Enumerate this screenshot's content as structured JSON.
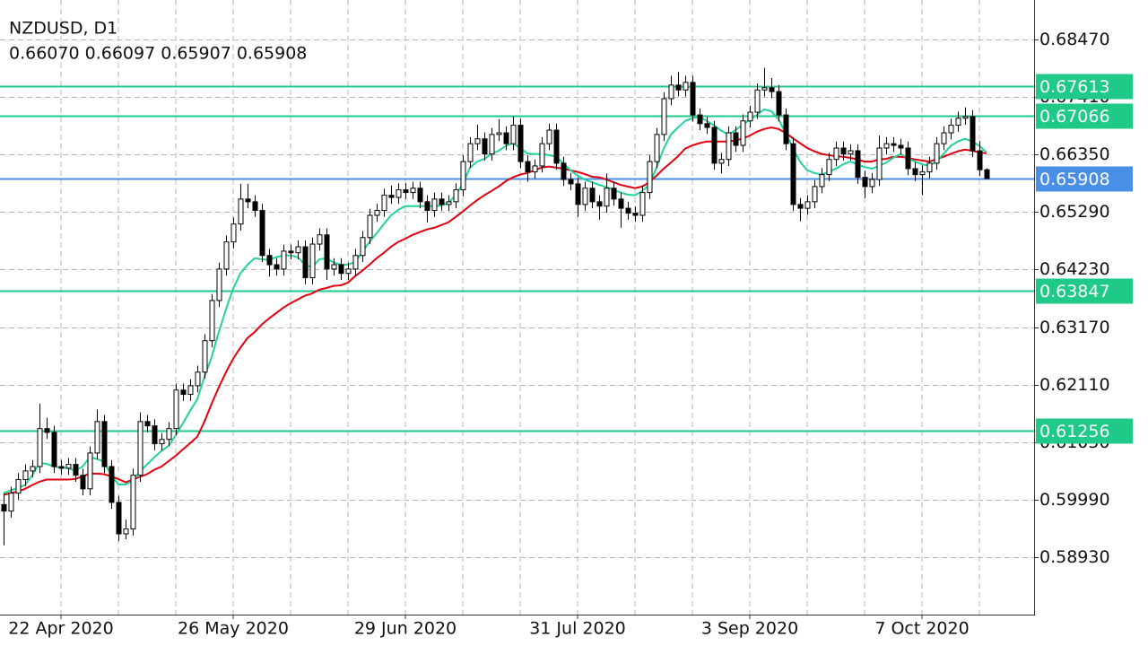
{
  "chart_data": {
    "type": "candlestick",
    "title": "NZDUSD, D1",
    "ohlc_readout": "0.66070 0.66097 0.65907 0.65908",
    "ylim": [
      0.57872,
      0.69198
    ],
    "yticks": [
      {
        "value": 0.5893,
        "label": "0.58930"
      },
      {
        "value": 0.5999,
        "label": "0.59990"
      },
      {
        "value": 0.6105,
        "label": "0.61050"
      },
      {
        "value": 0.6211,
        "label": "0.62110"
      },
      {
        "value": 0.6317,
        "label": "0.63170"
      },
      {
        "value": 0.6423,
        "label": "0.64230"
      },
      {
        "value": 0.6529,
        "label": "0.65290"
      },
      {
        "value": 0.6635,
        "label": "0.66350"
      },
      {
        "value": 0.6741,
        "label": "0.67410"
      },
      {
        "value": 0.6847,
        "label": "0.68470"
      }
    ],
    "grid": true,
    "categories": [
      null,
      null,
      null,
      null,
      null,
      null,
      null,
      null,
      "22 Apr 2020",
      null,
      null,
      null,
      null,
      null,
      null,
      null,
      null,
      null,
      null,
      null,
      null,
      null,
      null,
      null,
      null,
      null,
      null,
      null,
      null,
      null,
      null,
      null,
      "26 May 2020",
      null,
      null,
      null,
      null,
      null,
      null,
      null,
      null,
      null,
      null,
      null,
      null,
      null,
      null,
      null,
      null,
      null,
      null,
      null,
      null,
      null,
      null,
      null,
      "29 Jun 2020",
      null,
      null,
      null,
      null,
      null,
      null,
      null,
      null,
      null,
      null,
      null,
      null,
      null,
      null,
      null,
      null,
      null,
      null,
      null,
      null,
      null,
      null,
      null,
      "31 Jul 2020",
      null,
      null,
      null,
      null,
      null,
      null,
      null,
      null,
      null,
      null,
      null,
      null,
      null,
      null,
      null,
      null,
      null,
      null,
      null,
      null,
      null,
      null,
      null,
      "3 Sep 2020",
      null,
      null,
      null,
      null,
      null,
      null,
      null,
      null,
      null,
      null,
      null,
      null,
      null,
      null,
      null,
      null,
      null,
      null,
      null,
      null,
      null,
      null,
      null,
      "7 Oct 2020",
      null,
      null,
      null,
      null,
      null,
      null,
      null,
      null,
      null
    ],
    "ohlc": [
      [
        0.599,
        0.601,
        0.5915,
        0.5978
      ],
      [
        0.5978,
        0.6023,
        0.5966,
        0.6011
      ],
      [
        0.6011,
        0.6048,
        0.5999,
        0.6036
      ],
      [
        0.6036,
        0.6064,
        0.6024,
        0.6052
      ],
      [
        0.6052,
        0.6072,
        0.604,
        0.606
      ],
      [
        0.606,
        0.6176,
        0.6048,
        0.613
      ],
      [
        0.613,
        0.615,
        0.6111,
        0.6123
      ],
      [
        0.6123,
        0.6135,
        0.6048,
        0.606
      ],
      [
        0.606,
        0.6072,
        0.6045,
        0.6057
      ],
      [
        0.6057,
        0.6076,
        0.6045,
        0.6064
      ],
      [
        0.6064,
        0.6076,
        0.6032,
        0.6044
      ],
      [
        0.6044,
        0.6056,
        0.6007,
        0.6019
      ],
      [
        0.6019,
        0.6097,
        0.6007,
        0.6085
      ],
      [
        0.6085,
        0.6165,
        0.6073,
        0.6143
      ],
      [
        0.6143,
        0.6155,
        0.6048,
        0.606
      ],
      [
        0.606,
        0.6072,
        0.5982,
        0.5994
      ],
      [
        0.5994,
        0.6006,
        0.5923,
        0.5936
      ],
      [
        0.5936,
        0.5962,
        0.5926,
        0.5945
      ],
      [
        0.5945,
        0.6056,
        0.5933,
        0.6044
      ],
      [
        0.6044,
        0.616,
        0.6032,
        0.6143
      ],
      [
        0.6143,
        0.6155,
        0.6123,
        0.6135
      ],
      [
        0.6135,
        0.6147,
        0.609,
        0.6102
      ],
      [
        0.6102,
        0.6122,
        0.609,
        0.611
      ],
      [
        0.611,
        0.6142,
        0.6098,
        0.613
      ],
      [
        0.613,
        0.6213,
        0.6118,
        0.6201
      ],
      [
        0.6201,
        0.6213,
        0.6181,
        0.6193
      ],
      [
        0.6193,
        0.6221,
        0.6181,
        0.6209
      ],
      [
        0.6209,
        0.6246,
        0.6197,
        0.6234
      ],
      [
        0.6234,
        0.6304,
        0.6222,
        0.6292
      ],
      [
        0.6292,
        0.6378,
        0.628,
        0.6366
      ],
      [
        0.6366,
        0.6436,
        0.6354,
        0.6424
      ],
      [
        0.6424,
        0.6486,
        0.6412,
        0.6474
      ],
      [
        0.6474,
        0.6519,
        0.6462,
        0.6507
      ],
      [
        0.6507,
        0.6581,
        0.6495,
        0.6553
      ],
      [
        0.6553,
        0.6581,
        0.6536,
        0.6548
      ],
      [
        0.6548,
        0.656,
        0.652,
        0.6532
      ],
      [
        0.6532,
        0.6544,
        0.6437,
        0.6449
      ],
      [
        0.6449,
        0.6461,
        0.641,
        0.6432
      ],
      [
        0.6432,
        0.6444,
        0.6412,
        0.6424
      ],
      [
        0.6424,
        0.6469,
        0.6412,
        0.6457
      ],
      [
        0.6457,
        0.6469,
        0.6442,
        0.6454
      ],
      [
        0.6454,
        0.6477,
        0.6442,
        0.6465
      ],
      [
        0.6465,
        0.6477,
        0.6396,
        0.6408
      ],
      [
        0.6408,
        0.6482,
        0.6396,
        0.647
      ],
      [
        0.647,
        0.6499,
        0.6458,
        0.6487
      ],
      [
        0.6487,
        0.6499,
        0.6404,
        0.6424
      ],
      [
        0.6424,
        0.6444,
        0.6412,
        0.6432
      ],
      [
        0.6432,
        0.6444,
        0.6404,
        0.6416
      ],
      [
        0.6416,
        0.6436,
        0.6404,
        0.6424
      ],
      [
        0.6424,
        0.6461,
        0.6412,
        0.6449
      ],
      [
        0.6449,
        0.6494,
        0.6437,
        0.6482
      ],
      [
        0.6482,
        0.6535,
        0.647,
        0.6523
      ],
      [
        0.6523,
        0.6544,
        0.6511,
        0.6532
      ],
      [
        0.6532,
        0.6572,
        0.652,
        0.656
      ],
      [
        0.656,
        0.6578,
        0.6544,
        0.6556
      ],
      [
        0.6556,
        0.6582,
        0.6544,
        0.657
      ],
      [
        0.657,
        0.6582,
        0.6553,
        0.6565
      ],
      [
        0.6565,
        0.6585,
        0.6553,
        0.6573
      ],
      [
        0.6573,
        0.6585,
        0.6536,
        0.6548
      ],
      [
        0.6548,
        0.656,
        0.651,
        0.6532
      ],
      [
        0.6532,
        0.6565,
        0.652,
        0.6553
      ],
      [
        0.6553,
        0.6565,
        0.6531,
        0.6543
      ],
      [
        0.6543,
        0.656,
        0.6531,
        0.6548
      ],
      [
        0.6548,
        0.6582,
        0.6536,
        0.657
      ],
      [
        0.657,
        0.6634,
        0.6558,
        0.6622
      ],
      [
        0.6622,
        0.6667,
        0.661,
        0.6655
      ],
      [
        0.6655,
        0.669,
        0.6643,
        0.6664
      ],
      [
        0.6664,
        0.6676,
        0.6624,
        0.6636
      ],
      [
        0.6636,
        0.6684,
        0.6624,
        0.6672
      ],
      [
        0.6672,
        0.67,
        0.666,
        0.6675
      ],
      [
        0.6675,
        0.6687,
        0.6643,
        0.6655
      ],
      [
        0.6655,
        0.6705,
        0.6643,
        0.6689
      ],
      [
        0.6689,
        0.6701,
        0.661,
        0.6622
      ],
      [
        0.6622,
        0.6634,
        0.6585,
        0.6603
      ],
      [
        0.6603,
        0.6626,
        0.6591,
        0.6614
      ],
      [
        0.6614,
        0.6667,
        0.6602,
        0.6655
      ],
      [
        0.6655,
        0.6692,
        0.6643,
        0.668
      ],
      [
        0.668,
        0.6692,
        0.6607,
        0.6619
      ],
      [
        0.6619,
        0.6631,
        0.6577,
        0.6589
      ],
      [
        0.6589,
        0.6601,
        0.6569,
        0.6581
      ],
      [
        0.6581,
        0.6593,
        0.652,
        0.6543
      ],
      [
        0.6543,
        0.6585,
        0.6531,
        0.6573
      ],
      [
        0.6573,
        0.6585,
        0.6536,
        0.6548
      ],
      [
        0.6548,
        0.656,
        0.6515,
        0.654
      ],
      [
        0.654,
        0.66,
        0.6528,
        0.6573
      ],
      [
        0.6573,
        0.6585,
        0.6541,
        0.6553
      ],
      [
        0.6553,
        0.6565,
        0.65,
        0.6536
      ],
      [
        0.6536,
        0.6548,
        0.6515,
        0.6527
      ],
      [
        0.6527,
        0.6539,
        0.6511,
        0.6523
      ],
      [
        0.6523,
        0.6577,
        0.6511,
        0.6565
      ],
      [
        0.6565,
        0.6634,
        0.6553,
        0.6622
      ],
      [
        0.6622,
        0.6684,
        0.661,
        0.6672
      ],
      [
        0.6672,
        0.675,
        0.666,
        0.6738
      ],
      [
        0.6738,
        0.678,
        0.6726,
        0.6763
      ],
      [
        0.6763,
        0.6787,
        0.6742,
        0.6754
      ],
      [
        0.6754,
        0.678,
        0.6742,
        0.6768
      ],
      [
        0.6768,
        0.678,
        0.6696,
        0.6708
      ],
      [
        0.6708,
        0.672,
        0.668,
        0.6692
      ],
      [
        0.6692,
        0.6704,
        0.6673,
        0.6685
      ],
      [
        0.6685,
        0.6697,
        0.6607,
        0.6619
      ],
      [
        0.6619,
        0.6638,
        0.66,
        0.6626
      ],
      [
        0.6626,
        0.6687,
        0.6614,
        0.6675
      ],
      [
        0.6675,
        0.6687,
        0.664,
        0.6652
      ],
      [
        0.6652,
        0.6709,
        0.664,
        0.6697
      ],
      [
        0.6697,
        0.6725,
        0.6685,
        0.6713
      ],
      [
        0.6713,
        0.6766,
        0.6701,
        0.6754
      ],
      [
        0.6754,
        0.6795,
        0.6742,
        0.6758
      ],
      [
        0.6758,
        0.6776,
        0.6739,
        0.6751
      ],
      [
        0.6751,
        0.6763,
        0.6696,
        0.6708
      ],
      [
        0.6708,
        0.672,
        0.6643,
        0.6655
      ],
      [
        0.6655,
        0.6667,
        0.6531,
        0.6543
      ],
      [
        0.6543,
        0.6555,
        0.6512,
        0.6536
      ],
      [
        0.6536,
        0.656,
        0.6524,
        0.6548
      ],
      [
        0.6548,
        0.6588,
        0.6536,
        0.6576
      ],
      [
        0.6576,
        0.661,
        0.6564,
        0.6598
      ],
      [
        0.6598,
        0.6638,
        0.6586,
        0.6626
      ],
      [
        0.6626,
        0.6659,
        0.6614,
        0.6647
      ],
      [
        0.6647,
        0.6659,
        0.6624,
        0.6636
      ],
      [
        0.6636,
        0.6654,
        0.6624,
        0.6642
      ],
      [
        0.6642,
        0.6654,
        0.6581,
        0.6593
      ],
      [
        0.6593,
        0.6605,
        0.6555,
        0.6576
      ],
      [
        0.6576,
        0.6601,
        0.6564,
        0.6589
      ],
      [
        0.6589,
        0.667,
        0.6577,
        0.6647
      ],
      [
        0.6647,
        0.6667,
        0.6635,
        0.6655
      ],
      [
        0.6655,
        0.6667,
        0.664,
        0.6652
      ],
      [
        0.6652,
        0.6664,
        0.6635,
        0.6647
      ],
      [
        0.6647,
        0.6659,
        0.6597,
        0.6609
      ],
      [
        0.6609,
        0.6621,
        0.6586,
        0.6598
      ],
      [
        0.6598,
        0.6615,
        0.656,
        0.6603
      ],
      [
        0.6603,
        0.6631,
        0.6591,
        0.6619
      ],
      [
        0.6619,
        0.6667,
        0.6607,
        0.6655
      ],
      [
        0.6655,
        0.6687,
        0.6643,
        0.6675
      ],
      [
        0.6675,
        0.6701,
        0.6663,
        0.6689
      ],
      [
        0.6689,
        0.6714,
        0.6677,
        0.6702
      ],
      [
        0.6702,
        0.6722,
        0.669,
        0.6705
      ],
      [
        0.6705,
        0.6717,
        0.663,
        0.6642
      ],
      [
        0.6642,
        0.666,
        0.6595,
        0.6607
      ],
      [
        0.6607,
        0.66097,
        0.65907,
        0.65908
      ]
    ],
    "indicators": [
      {
        "color": "#e3000e",
        "values": [
          0.6008,
          0.6011,
          0.6014,
          0.6019,
          0.6026,
          0.6032,
          0.6036,
          0.6036,
          0.6036,
          0.6036,
          0.6037,
          0.6042,
          0.6047,
          0.6047,
          0.6046,
          0.6042,
          0.6037,
          0.6031,
          0.6036,
          0.6041,
          0.6046,
          0.6054,
          0.606,
          0.607,
          0.608,
          0.6092,
          0.6103,
          0.6115,
          0.6143,
          0.6176,
          0.6206,
          0.6234,
          0.6259,
          0.6279,
          0.6297,
          0.6308,
          0.6322,
          0.6333,
          0.6343,
          0.6353,
          0.6361,
          0.6368,
          0.6375,
          0.6379,
          0.6386,
          0.6389,
          0.6393,
          0.6394,
          0.6399,
          0.6411,
          0.6421,
          0.6432,
          0.6444,
          0.6454,
          0.6465,
          0.6474,
          0.648,
          0.6487,
          0.6492,
          0.6497,
          0.65,
          0.6505,
          0.651,
          0.652,
          0.653,
          0.6541,
          0.6551,
          0.656,
          0.6568,
          0.6576,
          0.6586,
          0.6593,
          0.6598,
          0.6601,
          0.6606,
          0.6611,
          0.6613,
          0.6611,
          0.6609,
          0.6606,
          0.6603,
          0.6599,
          0.6594,
          0.6593,
          0.6589,
          0.6584,
          0.6579,
          0.6576,
          0.6573,
          0.6576,
          0.6584,
          0.6596,
          0.6609,
          0.662,
          0.6632,
          0.6646,
          0.6652,
          0.6656,
          0.6659,
          0.6659,
          0.6659,
          0.6659,
          0.6661,
          0.6664,
          0.667,
          0.6677,
          0.6682,
          0.6685,
          0.6682,
          0.6675,
          0.6665,
          0.6656,
          0.6647,
          0.6641,
          0.6636,
          0.6634,
          0.6632,
          0.6631,
          0.6629,
          0.6626,
          0.6622,
          0.6622,
          0.6626,
          0.6627,
          0.6631,
          0.6631,
          0.6629,
          0.6626,
          0.6624,
          0.6622,
          0.6626,
          0.6631,
          0.6636,
          0.6641,
          0.6644,
          0.6642,
          0.6639,
          0.6637
        ]
      },
      {
        "color": "#1fd49b",
        "values": [
          0.6011,
          0.6016,
          0.6021,
          0.6026,
          0.6044,
          0.6067,
          0.6065,
          0.606,
          0.6058,
          0.6057,
          0.6052,
          0.606,
          0.6077,
          0.6074,
          0.6069,
          0.6044,
          0.6027,
          0.6027,
          0.6034,
          0.6051,
          0.6064,
          0.6077,
          0.6089,
          0.6098,
          0.6118,
          0.614,
          0.6163,
          0.6184,
          0.6226,
          0.6262,
          0.6308,
          0.635,
          0.6388,
          0.6416,
          0.6432,
          0.6444,
          0.6442,
          0.6441,
          0.6446,
          0.6449,
          0.6449,
          0.6446,
          0.6432,
          0.6427,
          0.6442,
          0.6444,
          0.6436,
          0.6432,
          0.6432,
          0.6437,
          0.6456,
          0.6474,
          0.649,
          0.6507,
          0.6523,
          0.6533,
          0.654,
          0.654,
          0.654,
          0.654,
          0.654,
          0.6541,
          0.6546,
          0.656,
          0.6581,
          0.6611,
          0.6622,
          0.6627,
          0.6636,
          0.6642,
          0.6651,
          0.6656,
          0.6647,
          0.6637,
          0.6636,
          0.6636,
          0.6634,
          0.6631,
          0.6619,
          0.6606,
          0.6596,
          0.6589,
          0.6584,
          0.6579,
          0.6575,
          0.657,
          0.6565,
          0.6561,
          0.656,
          0.6568,
          0.6579,
          0.6611,
          0.6646,
          0.6672,
          0.6685,
          0.6697,
          0.6702,
          0.6705,
          0.6697,
          0.6689,
          0.6679,
          0.6672,
          0.668,
          0.669,
          0.6699,
          0.6708,
          0.6718,
          0.6715,
          0.67,
          0.6675,
          0.6647,
          0.6622,
          0.6606,
          0.6601,
          0.6598,
          0.6603,
          0.6609,
          0.6617,
          0.6622,
          0.6617,
          0.6612,
          0.6609,
          0.6614,
          0.662,
          0.6629,
          0.6636,
          0.6629,
          0.6622,
          0.6617,
          0.6614,
          0.6622,
          0.6636,
          0.6651,
          0.6659,
          0.6664,
          0.6659,
          0.6651,
          0.6639
        ]
      }
    ],
    "levels": [
      {
        "value": 0.67613,
        "color": "#1fc987"
      },
      {
        "value": 0.67066,
        "color": "#1fc987"
      },
      {
        "value": 0.65908,
        "color": "#4a8fe7"
      },
      {
        "value": 0.63847,
        "color": "#1fc987"
      },
      {
        "value": 0.61256,
        "color": "#1fc987"
      }
    ],
    "bull_fill": "#ffffff",
    "bear_fill": "#000000",
    "candle_stroke": "#000000"
  }
}
